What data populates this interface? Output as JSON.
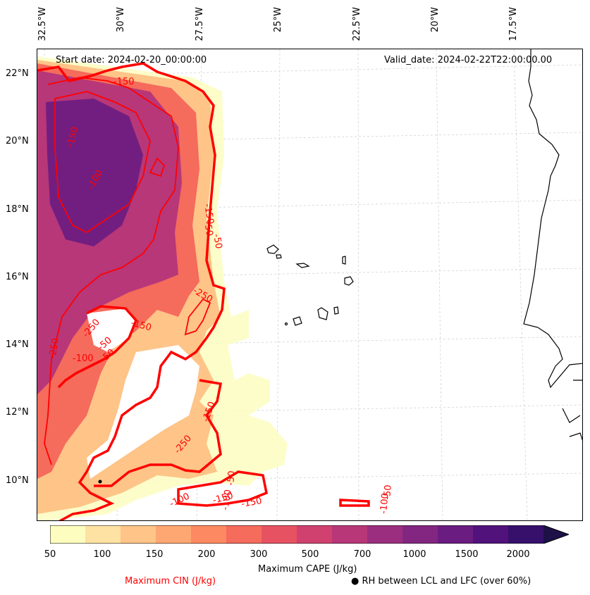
{
  "header": {
    "start_date": "Start date: 2024-02-20_00:00:00",
    "valid_date": "Valid_date: 2024-02-22T22:00:00.00"
  },
  "axes": {
    "lon_labels": [
      "32.5°W",
      "30°W",
      "27.5°W",
      "25°W",
      "22.5°W",
      "20°W",
      "17.5°W"
    ],
    "lat_labels": [
      "22°N",
      "20°N",
      "18°N",
      "16°N",
      "14°N",
      "12°N",
      "10°N"
    ]
  },
  "contour_labels": [
    "-150",
    "-100",
    "-150",
    "-150",
    "-250",
    "-50",
    "-250",
    "-150",
    "-250",
    "-50",
    "-100",
    "-50",
    "-150",
    "-250",
    "-50",
    "-100",
    "-150",
    "-100",
    "-100",
    "-50",
    "-150",
    "-50"
  ],
  "colorbar": {
    "ticks": [
      "50",
      "100",
      "150",
      "200",
      "300",
      "500",
      "700",
      "1000",
      "1500",
      "2000"
    ],
    "label": "Maximum CAPE (J/kg)",
    "colors": [
      "#fcfdbf",
      "#fde2a3",
      "#fec488",
      "#fea772",
      "#fc8961",
      "#f56b5c",
      "#e75263",
      "#d0416f",
      "#b73779",
      "#9c2e7f",
      "#832681",
      "#6a1c81",
      "#51127c",
      "#36106b",
      "#1d1147"
    ]
  },
  "legend": {
    "cin_label": "Maximum CIN (J/kg)",
    "rh_label": "RH between LCL and LFC (over 60%)",
    "cin_color": "#ff0000"
  }
}
